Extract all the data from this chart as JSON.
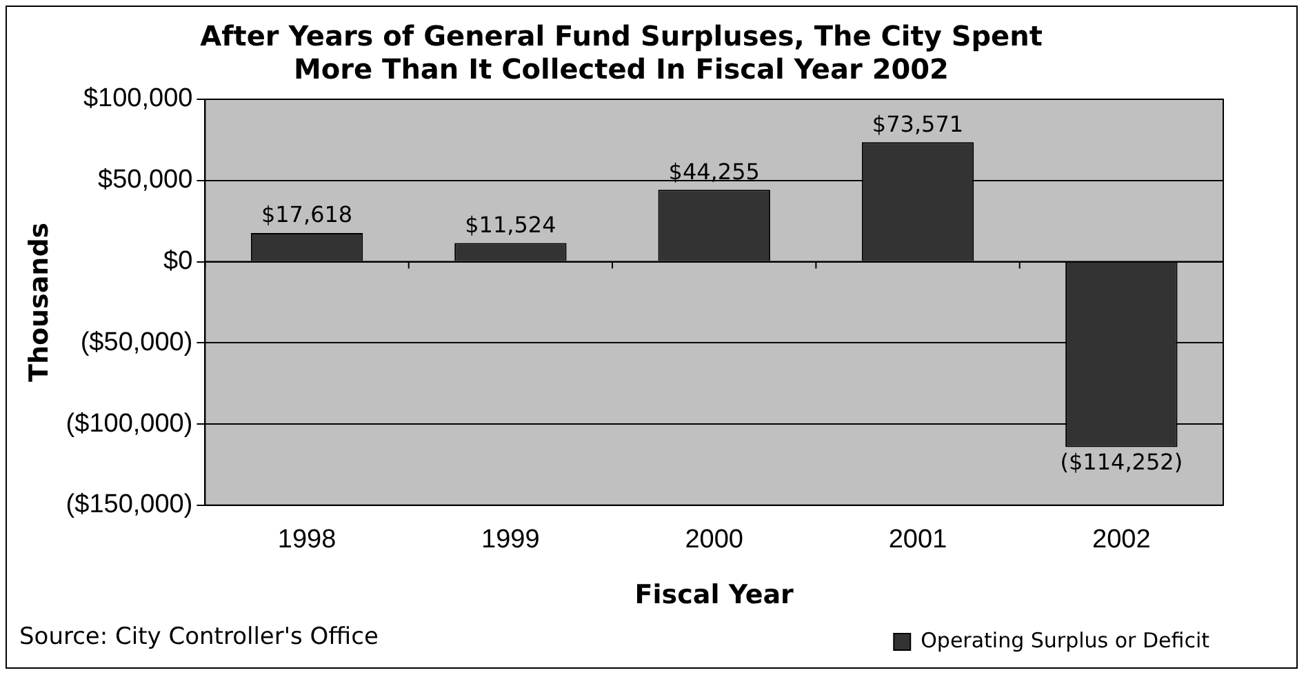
{
  "chart_data": {
    "type": "bar",
    "title": "After Years of General Fund Surpluses, The City Spent\nMore Than It Collected In Fiscal Year 2002",
    "xlabel": "Fiscal Year",
    "ylabel": "Thousands",
    "categories": [
      "1998",
      "1999",
      "2000",
      "2001",
      "2002"
    ],
    "series": [
      {
        "name": "Operating Surplus or Deficit",
        "color": "#333333",
        "values": [
          17618,
          11524,
          44255,
          73571,
          -114252
        ],
        "value_labels": [
          "$17,618",
          "$11,524",
          "$44,255",
          "$73,571",
          "($114,252)"
        ]
      }
    ],
    "ylim": [
      -150000,
      100000
    ],
    "yticks": [
      {
        "value": -150000,
        "label": "($150,000)"
      },
      {
        "value": -100000,
        "label": "($100,000)"
      },
      {
        "value": -50000,
        "label": "($50,000)"
      },
      {
        "value": 0,
        "label": "$0"
      },
      {
        "value": 50000,
        "label": "$50,000"
      },
      {
        "value": 100000,
        "label": "$100,000"
      }
    ],
    "grid": "y",
    "legend": "bottom right",
    "annotations": [
      "Source: City Controller's Office"
    ]
  }
}
